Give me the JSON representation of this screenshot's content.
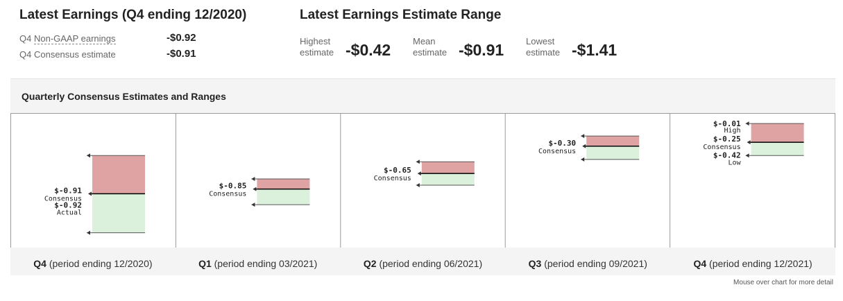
{
  "latest": {
    "title": "Latest Earnings (Q4 ending 12/2020)",
    "rows": [
      {
        "prefix": "Q4 ",
        "label": "Non-GAAP earnings",
        "value": "-$0.92"
      },
      {
        "prefix": "Q4 ",
        "label": "Consensus estimate",
        "value": "-$0.91"
      }
    ]
  },
  "range": {
    "title": "Latest Earnings Estimate Range",
    "items": [
      {
        "label1": "Highest",
        "label2": "estimate",
        "value": "-$0.42"
      },
      {
        "label1": "Mean",
        "label2": "estimate",
        "value": "-$0.91"
      },
      {
        "label1": "Lowest",
        "label2": "estimate",
        "value": "-$1.41"
      }
    ]
  },
  "chart": {
    "title": "Quarterly Consensus Estimates and Ranges",
    "hint": "Mouse over chart for more detail",
    "colors": {
      "upper": "#e0a3a3",
      "lower": "#dbf1dc",
      "line": "#000000"
    }
  },
  "chart_data": {
    "type": "table",
    "quarters": [
      {
        "q": "Q4",
        "period": "(period ending 12/2020)",
        "high": -0.42,
        "low": -1.41,
        "consensus": -0.91,
        "consensus_label": "$-0.91",
        "actual": -0.92,
        "actual_label": "$-0.92"
      },
      {
        "q": "Q1",
        "period": "(period ending 03/2021)",
        "high": -0.72,
        "low": -1.05,
        "consensus": -0.85,
        "consensus_label": "$-0.85"
      },
      {
        "q": "Q2",
        "period": "(period ending 06/2021)",
        "high": -0.5,
        "low": -0.8,
        "consensus": -0.65,
        "consensus_label": "$-0.65"
      },
      {
        "q": "Q3",
        "period": "(period ending 09/2021)",
        "high": -0.17,
        "low": -0.47,
        "consensus": -0.3,
        "consensus_label": "$-0.30"
      },
      {
        "q": "Q4",
        "period": "(period ending 12/2021)",
        "high": -0.01,
        "low": -0.42,
        "consensus": -0.25,
        "consensus_label": "$-0.25",
        "high_label": "$-0.01",
        "low_label": "$-0.42"
      }
    ],
    "words": {
      "consensus": "Consensus",
      "actual": "Actual",
      "high": "High",
      "low": "Low"
    }
  }
}
